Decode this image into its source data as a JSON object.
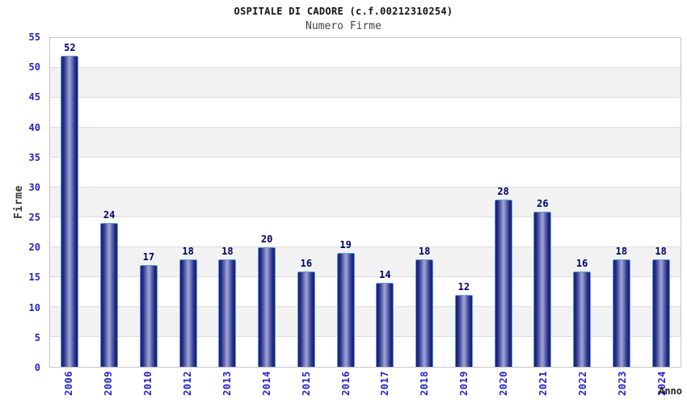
{
  "header": {
    "title": "OSPITALE DI CADORE (c.f.00212310254)",
    "subtitle": "Numero Firme"
  },
  "chart_data": {
    "type": "bar",
    "title": "OSPITALE DI CADORE (c.f.00212310254)",
    "subtitle": "Numero Firme",
    "categories": [
      "2006",
      "2009",
      "2010",
      "2012",
      "2013",
      "2014",
      "2015",
      "2016",
      "2017",
      "2018",
      "2019",
      "2020",
      "2021",
      "2022",
      "2023",
      "2024"
    ],
    "values": [
      52,
      24,
      17,
      18,
      18,
      20,
      16,
      19,
      14,
      18,
      12,
      28,
      26,
      16,
      18,
      18
    ],
    "xlabel": "Anno",
    "ylabel": "Firme",
    "ylim": [
      0,
      55
    ],
    "ytick_interval": 5,
    "yticks": [
      0,
      5,
      10,
      15,
      20,
      25,
      30,
      35,
      40,
      45,
      50,
      55
    ],
    "grid": "horizontal-alternating-bands",
    "legend": "none",
    "data_labels": "above-bars",
    "colors": {
      "bar_border": "#55a0dd",
      "bar_dark": "#1a1a74",
      "bar_light": "#99a2d6",
      "tick_label": "#2323cc",
      "value_label": "#000066",
      "band_white": "#ffffff",
      "band_gray": "#f2f2f2",
      "gridline": "#dcdcdc",
      "plot_border": "#c6c6c6"
    }
  }
}
